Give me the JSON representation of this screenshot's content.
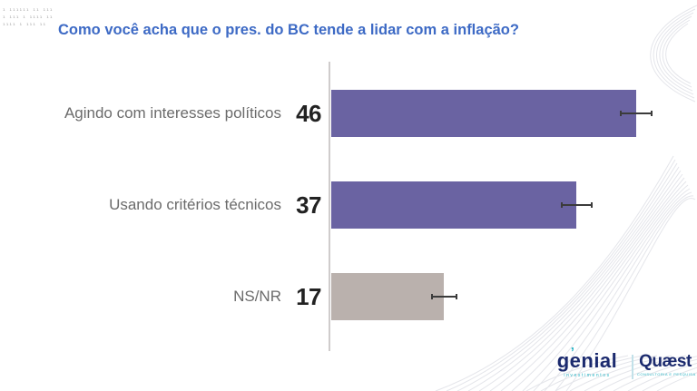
{
  "fine_print": {
    "lines": [
      "ı ıııııı ıı ııı",
      "ı ııı ı ıııı ıı",
      "ıııı ı ııı ıı"
    ]
  },
  "title": "Como você acha que o pres. do BC tende a lidar com a inflação?",
  "chart_data": {
    "type": "bar",
    "orientation": "horizontal",
    "title": "Como você acha que o pres. do BC tende a lidar com a inflação?",
    "categories": [
      "Agindo com interesses políticos",
      "Usando critérios técnicos",
      "NS/NR"
    ],
    "values": [
      46,
      37,
      17
    ],
    "margins_of_error": [
      2.5,
      2.4,
      2.0
    ],
    "bar_colors": [
      "#6a63a2",
      "#6a63a2",
      "#bab1ad"
    ],
    "value_label_position": "left-of-bar",
    "xlim": [
      0,
      55
    ],
    "grid": false,
    "legend": false,
    "error_bars": true
  },
  "footer": {
    "genial_logo": {
      "name": "genial",
      "accent": "’",
      "subtitle": "investimentos"
    },
    "quaest_logo": {
      "name": "Quæst",
      "subtitle": "CONSULTORIA E PESQUISA"
    }
  },
  "colors": {
    "title": "#3d6ac5",
    "bar_purple": "#6a63a2",
    "bar_gray": "#bab1ad",
    "axis": "#cfcccc",
    "label_text": "#6b6b6b",
    "value_text": "#222222",
    "error_bar": "#3b3b3b",
    "logo_navy": "#1b2a6e",
    "logo_teal": "#27b3c4",
    "decor_line": "#e4e5ea"
  }
}
